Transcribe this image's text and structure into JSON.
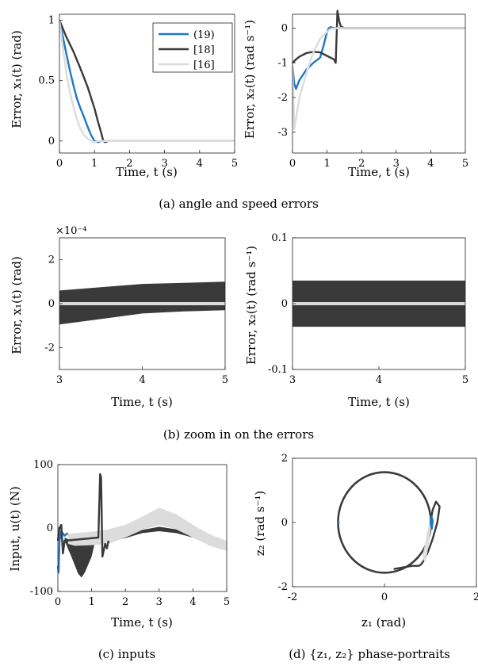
{
  "colors": {
    "series_19": "#1f77c4",
    "series_18": "#3a3a3a",
    "series_16": "#dcdcdc"
  },
  "captions": {
    "a": "(a) angle and speed errors",
    "b": "(b) zoom in on the errors",
    "c": "(c) inputs",
    "d": "(d) {z₁, z₂} phase-portraits"
  },
  "chart_data": [
    {
      "id": "a1",
      "type": "line",
      "xlabel": "Time, t (s)",
      "ylabel": "Error, x₁(t) (rad)",
      "xlim": [
        0,
        5
      ],
      "ylim": [
        -0.1,
        1.05
      ],
      "xticks": [
        "0",
        "1",
        "2",
        "3",
        "4",
        "5"
      ],
      "yticks": [
        "0",
        "0.5",
        "1"
      ],
      "legend_position": "top-right",
      "series": [
        {
          "name": "(19)",
          "color": "#1f77c4",
          "x": [
            0,
            0.1,
            0.2,
            0.3,
            0.4,
            0.5,
            0.6,
            0.7,
            0.8,
            0.9,
            1.0,
            1.1,
            1.2,
            1.3,
            5
          ],
          "y": [
            1,
            0.86,
            0.72,
            0.58,
            0.46,
            0.35,
            0.27,
            0.2,
            0.12,
            0.05,
            0.0,
            -0.01,
            0.0,
            0,
            0
          ]
        },
        {
          "name": "[18]",
          "color": "#3a3a3a",
          "x": [
            0,
            0.1,
            0.2,
            0.4,
            0.6,
            0.8,
            1.0,
            1.1,
            1.2,
            1.25,
            1.3,
            1.4,
            5
          ],
          "y": [
            1,
            0.93,
            0.86,
            0.74,
            0.6,
            0.45,
            0.27,
            0.16,
            0.06,
            0.0,
            -0.01,
            0,
            0
          ]
        },
        {
          "name": "[16]",
          "color": "#dcdcdc",
          "x": [
            0,
            0.1,
            0.2,
            0.3,
            0.4,
            0.5,
            0.6,
            0.7,
            0.8,
            0.9,
            1.0,
            1.1,
            5
          ],
          "y": [
            1,
            0.77,
            0.56,
            0.4,
            0.28,
            0.18,
            0.1,
            0.05,
            0.02,
            0.0,
            -0.01,
            0,
            0
          ]
        }
      ]
    },
    {
      "id": "a2",
      "type": "line",
      "xlabel": "Time, t (s)",
      "ylabel": "Error, x₂(t) (rad s⁻¹)",
      "xlim": [
        0,
        5
      ],
      "ylim": [
        -3.6,
        0.4
      ],
      "xticks": [
        "0",
        "1",
        "2",
        "3",
        "4",
        "5"
      ],
      "yticks": [
        "-3",
        "-2",
        "-1",
        "0"
      ],
      "series": [
        {
          "name": "(19)",
          "color": "#1f77c4",
          "x": [
            0,
            0.05,
            0.1,
            0.2,
            0.4,
            0.6,
            0.8,
            0.9,
            1.0,
            1.05,
            1.1,
            1.2,
            5
          ],
          "y": [
            -1.1,
            -1.6,
            -1.75,
            -1.5,
            -1.2,
            -1.0,
            -0.85,
            -0.5,
            -0.1,
            0.0,
            0.03,
            0,
            0
          ]
        },
        {
          "name": "[18]",
          "color": "#3a3a3a",
          "x": [
            0,
            0.1,
            0.2,
            0.4,
            0.6,
            0.8,
            1.0,
            1.2,
            1.25,
            1.3,
            1.35,
            1.4,
            1.5,
            5
          ],
          "y": [
            -1.0,
            -0.9,
            -0.82,
            -0.72,
            -0.68,
            -0.7,
            -0.8,
            -0.9,
            -1.0,
            0.5,
            0.2,
            0.05,
            0,
            0
          ]
        },
        {
          "name": "[16]",
          "color": "#dcdcdc",
          "x": [
            0,
            0.05,
            0.1,
            0.2,
            0.4,
            0.6,
            0.8,
            1.0,
            1.1,
            1.3,
            5
          ],
          "y": [
            -1.1,
            -2.9,
            -2.6,
            -2.0,
            -1.3,
            -0.7,
            -0.3,
            -0.1,
            -0.02,
            0,
            0
          ]
        }
      ]
    },
    {
      "id": "b1",
      "type": "area",
      "xlabel": "Time, t (s)",
      "ylabel": "Error, x₁(t) (rad)",
      "y_exponent": "×10⁻⁴",
      "xlim": [
        3,
        5
      ],
      "ylim": [
        -3,
        3
      ],
      "xticks": [
        "3",
        "4",
        "5"
      ],
      "yticks": [
        "-2",
        "0",
        "2"
      ],
      "band": {
        "name": "[18]",
        "color": "#3a3a3a",
        "x": [
          3,
          3.5,
          4,
          4.5,
          5
        ],
        "upper": [
          0.6,
          0.75,
          0.9,
          0.95,
          1.0
        ],
        "lower": [
          -0.95,
          -0.7,
          -0.45,
          -0.35,
          -0.3
        ]
      },
      "line": {
        "name": "[16]",
        "color": "#dcdcdc",
        "x": [
          3,
          5
        ],
        "y": [
          0,
          0
        ]
      }
    },
    {
      "id": "b2",
      "type": "area",
      "xlabel": "Time, t (s)",
      "ylabel": "Error, x₂(t) (rad s⁻¹)",
      "xlim": [
        3,
        5
      ],
      "ylim": [
        -0.1,
        0.1
      ],
      "xticks": [
        "3",
        "4",
        "5"
      ],
      "yticks": [
        "-0.1",
        "0",
        "0.1"
      ],
      "band": {
        "name": "[18]",
        "color": "#3a3a3a",
        "x": [
          3,
          5
        ],
        "upper": [
          0.035,
          0.035
        ],
        "lower": [
          -0.035,
          -0.035
        ]
      },
      "line": {
        "name": "[16]",
        "color": "#dcdcdc",
        "x": [
          3,
          5
        ],
        "y": [
          0,
          0
        ]
      }
    },
    {
      "id": "c",
      "type": "line",
      "xlabel": "Time, t (s)",
      "ylabel": "Input, u(t) (N)",
      "xlim": [
        0,
        5
      ],
      "ylim": [
        -100,
        100
      ],
      "xticks": [
        "0",
        "1",
        "2",
        "3",
        "4",
        "5"
      ],
      "yticks": [
        "-100",
        "0",
        "100"
      ],
      "bands": [
        {
          "name": "[18]",
          "color": "#3a3a3a",
          "x": [
            0.2,
            0.4,
            0.6,
            0.7,
            0.8,
            1.0,
            1.1,
            1.2,
            1.5,
            2.0,
            2.5,
            3.0,
            3.5,
            4.0,
            4.5,
            5.0
          ],
          "upper": [
            -15,
            -20,
            -25,
            -25,
            -22,
            -20,
            -15,
            -10,
            -18,
            -12,
            -3,
            2,
            -2,
            -10,
            -20,
            -28
          ],
          "lower": [
            -20,
            -45,
            -72,
            -78,
            -70,
            -45,
            -22,
            -14,
            -22,
            -16,
            -8,
            -5,
            -8,
            -15,
            -24,
            -32
          ]
        },
        {
          "name": "[16]",
          "color": "#dcdcdc",
          "x": [
            0.3,
            0.5,
            1.0,
            1.5,
            2.0,
            2.5,
            3.0,
            3.5,
            4.0,
            4.5,
            5.0
          ],
          "upper": [
            -10,
            -8,
            -6,
            -2,
            5,
            18,
            32,
            22,
            5,
            -10,
            -20
          ],
          "lower": [
            -25,
            -28,
            -27,
            -25,
            -15,
            -3,
            5,
            -2,
            -15,
            -28,
            -36
          ]
        }
      ],
      "series": [
        {
          "name": "(19)",
          "color": "#1f77c4",
          "x": [
            0,
            0.02,
            0.05,
            0.1,
            0.2,
            0.3
          ],
          "y": [
            -60,
            -70,
            -20,
            -5,
            -12,
            -8
          ]
        },
        {
          "name": "[18]",
          "color": "#3a3a3a",
          "x": [
            0,
            0.05,
            0.1,
            0.15,
            0.2,
            1.2,
            1.25,
            1.28,
            1.32,
            1.4,
            1.45,
            1.5
          ],
          "y": [
            -20,
            0,
            5,
            -40,
            -20,
            -15,
            85,
            80,
            -45,
            -25,
            -32,
            -20
          ]
        }
      ]
    },
    {
      "id": "d",
      "type": "scatter",
      "xlabel": "z₁ (rad)",
      "ylabel": "z₂ (rad s⁻¹)",
      "xlim": [
        -2,
        2
      ],
      "ylim": [
        -2,
        2
      ],
      "xticks": [
        "-2",
        "0",
        "2"
      ],
      "yticks": [
        "-2",
        "0",
        "2"
      ],
      "circles": [
        {
          "name": "[18]",
          "color": "#3a3a3a",
          "center": [
            0,
            0
          ],
          "rx": [
            1.0,
            1.02
          ],
          "ry": [
            1.55,
            1.58
          ]
        }
      ],
      "series": [
        {
          "name": "[18]",
          "color": "#3a3a3a",
          "x": [
            1.0,
            1.05,
            1.12,
            1.2,
            1.15,
            1.05,
            0.95,
            0.85,
            0.8,
            0.75,
            0.6,
            0.4,
            0.2
          ],
          "y": [
            0.0,
            0.4,
            0.65,
            0.5,
            0.0,
            -0.5,
            -0.9,
            -1.2,
            -1.3,
            -1.35,
            -1.35,
            -1.4,
            -1.45
          ]
        },
        {
          "name": "[16]",
          "color": "#dcdcdc",
          "x": [
            1.0,
            0.95,
            0.9,
            0.85,
            0.88,
            0.93,
            0.98,
            1.0
          ],
          "y": [
            0.0,
            -0.3,
            -0.7,
            -1.0,
            -1.2,
            -0.8,
            -0.3,
            0.0
          ]
        },
        {
          "name": "(19)",
          "color": "#1f77c4",
          "x": [
            1.0,
            1.02,
            1.05,
            1.03,
            1.0
          ],
          "y": [
            0.0,
            0.2,
            0.05,
            -0.2,
            0.0
          ]
        },
        {
          "name": "(19)",
          "color": "#1f77c4",
          "x": [
            -1.0,
            -1.0
          ],
          "y": [
            -0.05,
            0.05
          ]
        }
      ]
    }
  ]
}
